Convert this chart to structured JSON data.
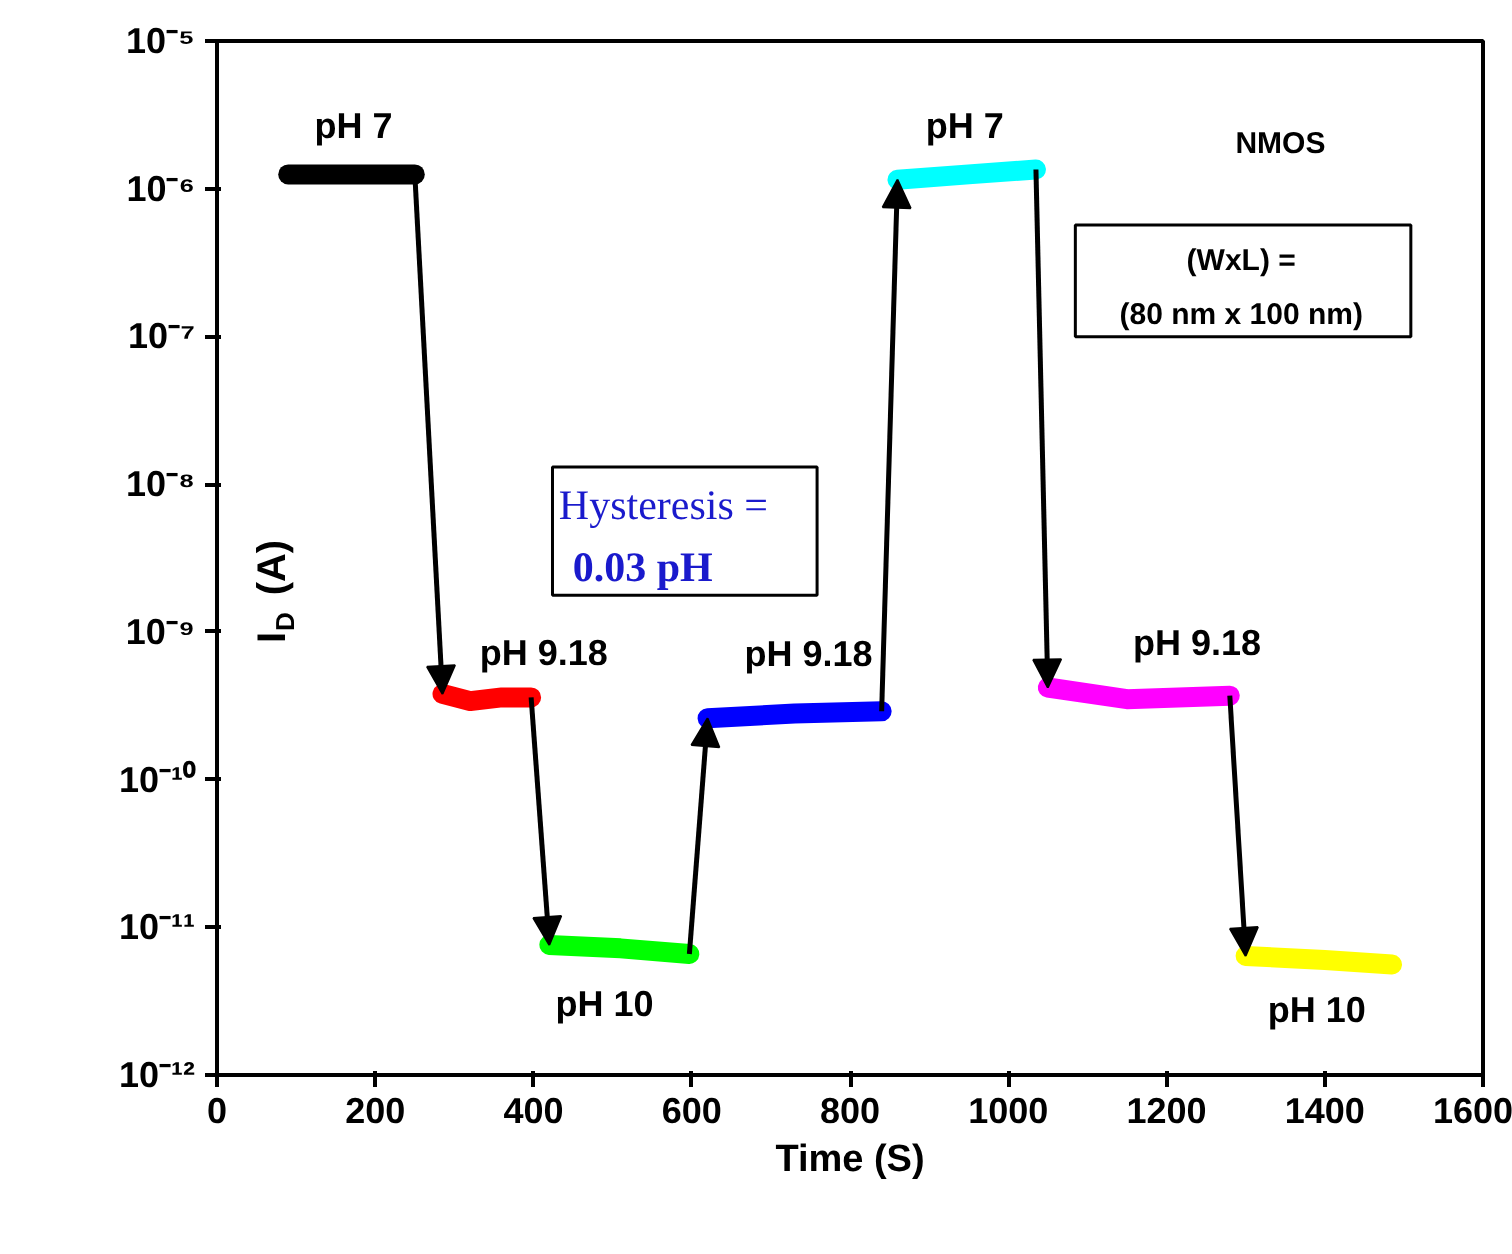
{
  "chart_data": {
    "type": "line",
    "xlabel": "Time (S)",
    "ylabel": "I$_{D}$ (A)",
    "xlim": [
      0,
      1600
    ],
    "xticks": [
      0,
      200,
      400,
      600,
      800,
      1000,
      1200,
      1400,
      1600
    ],
    "ylim": [
      1e-12,
      1e-05
    ],
    "yticks": [
      {
        "value": 1e-12,
        "label": "10⁻¹²"
      },
      {
        "value": 1e-11,
        "label": "10⁻¹¹"
      },
      {
        "value": 1e-10,
        "label": "10⁻¹⁰"
      },
      {
        "value": 1e-09,
        "label": "10⁻⁹"
      },
      {
        "value": 1e-08,
        "label": "10⁻⁸"
      },
      {
        "value": 1e-07,
        "label": "10⁻⁷"
      },
      {
        "value": 1e-06,
        "label": "10⁻⁶"
      },
      {
        "value": 1e-05,
        "label": "10⁻⁵"
      }
    ],
    "log": "y",
    "grid": false,
    "line_style": "solid",
    "series": [
      {
        "color": "#000000",
        "x": [
          90,
          170,
          250
        ],
        "values": [
          1.25e-06,
          1.25e-06,
          1.25e-06
        ]
      },
      {
        "color": "#ff0000",
        "x": [
          285,
          320,
          360,
          397
        ],
        "values": [
          3.8e-10,
          3.4e-10,
          3.6e-10,
          3.6e-10
        ]
      },
      {
        "color": "#00ff00",
        "x": [
          420,
          510,
          597
        ],
        "values": [
          7.6e-12,
          7.2e-12,
          6.6e-12
        ]
      },
      {
        "color": "#0000ff",
        "x": [
          620,
          730,
          840
        ],
        "values": [
          2.6e-10,
          2.8e-10,
          2.9e-10
        ]
      },
      {
        "color": "#00ffff",
        "x": [
          860,
          950,
          1035
        ],
        "values": [
          1.15e-06,
          1.25e-06,
          1.35e-06
        ]
      },
      {
        "color": "#ff00ff",
        "x": [
          1050,
          1150,
          1280
        ],
        "values": [
          4.2e-10,
          3.5e-10,
          3.7e-10
        ]
      },
      {
        "color": "#ffff00",
        "x": [
          1300,
          1400,
          1485
        ],
        "values": [
          6.4e-12,
          6e-12,
          5.6e-12
        ]
      }
    ],
    "annotations": [
      {
        "text": "pH 7",
        "x": 170,
        "y": 1.25e-06
      },
      {
        "text": "pH 9.18",
        "x": 360,
        "y": 3.6e-10
      },
      {
        "text": "pH 10",
        "x": 510,
        "y": 7.2e-12
      },
      {
        "text": "pH 9.18",
        "x": 730,
        "y": 2.8e-10
      },
      {
        "text": "pH 7",
        "x": 950,
        "y": 1.25e-06
      },
      {
        "text": "pH 9.18",
        "x": 1150,
        "y": 3.5e-10
      },
      {
        "text": "pH 10",
        "x": 1400,
        "y": 6e-12
      },
      "NMOS",
      "(WxL) =",
      "(80 nm x 100 nm)",
      "Hysteresis =",
      "0.03 pH"
    ]
  }
}
